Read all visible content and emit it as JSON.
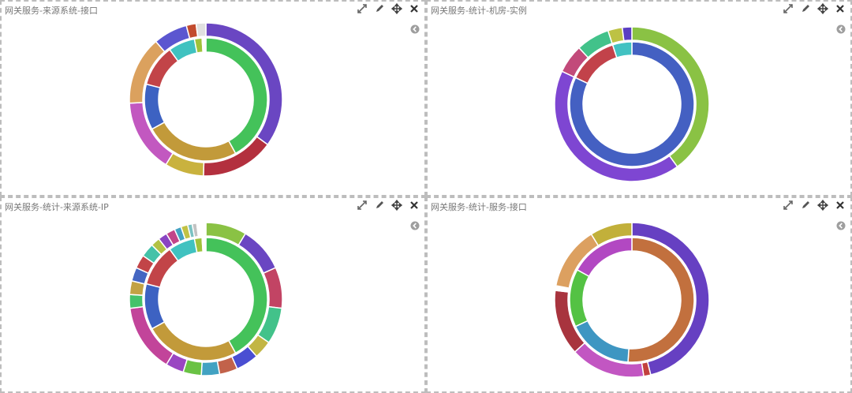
{
  "panels": [
    {
      "title": "网关服务-来源系统-接口",
      "chart_data": {
        "type": "pie",
        "variant": "nested-donut",
        "inner": [
          {
            "value": 42,
            "color": "#44c25a"
          },
          {
            "value": 25,
            "color": "#c29a3a"
          },
          {
            "value": 12,
            "color": "#3d62c2"
          },
          {
            "value": 11,
            "color": "#c24448"
          },
          {
            "value": 7,
            "color": "#40c2c0"
          },
          {
            "value": 2,
            "color": "#9fc23a"
          },
          {
            "value": 1,
            "color": "#ffffff"
          }
        ],
        "outer": [
          {
            "value": 34,
            "color": "#6a46c2"
          },
          {
            "value": 15,
            "color": "#b3303e"
          },
          {
            "value": 8,
            "color": "#c9b23e"
          },
          {
            "value": 15,
            "color": "#c258c0"
          },
          {
            "value": 14,
            "color": "#dba15e"
          },
          {
            "value": 7,
            "color": "#5b56d0"
          },
          {
            "value": 2,
            "color": "#c24b2e"
          },
          {
            "value": 2,
            "color": "#e0e0e0"
          }
        ]
      }
    },
    {
      "title": "网关服务-统计-机房-实例",
      "chart_data": {
        "type": "pie",
        "variant": "nested-donut",
        "inner": [
          {
            "value": 82,
            "color": "#4460c2"
          },
          {
            "value": 13,
            "color": "#c2424a"
          },
          {
            "value": 5,
            "color": "#42c2c2"
          }
        ],
        "outer": [
          {
            "value": 40,
            "color": "#8ac244"
          },
          {
            "value": 42,
            "color": "#7e46d2"
          },
          {
            "value": 6,
            "color": "#c24a7a"
          },
          {
            "value": 7,
            "color": "#42c28a"
          },
          {
            "value": 3,
            "color": "#bdc244"
          },
          {
            "value": 2,
            "color": "#5a3ec2"
          }
        ]
      }
    },
    {
      "title": "网关服务-统计-来源系统-IP",
      "chart_data": {
        "type": "pie",
        "variant": "nested-donut",
        "inner": [
          {
            "value": 42,
            "color": "#44c25a"
          },
          {
            "value": 25,
            "color": "#c29a3a"
          },
          {
            "value": 12,
            "color": "#3d62c2"
          },
          {
            "value": 11,
            "color": "#c24448"
          },
          {
            "value": 7,
            "color": "#40c2c0"
          },
          {
            "value": 2,
            "color": "#9fc23a"
          },
          {
            "value": 1,
            "color": "#ffffff"
          }
        ],
        "outer": [
          {
            "value": 9,
            "color": "#8ac244"
          },
          {
            "value": 10,
            "color": "#6a46c2"
          },
          {
            "value": 9,
            "color": "#c24464"
          },
          {
            "value": 8,
            "color": "#42c28a"
          },
          {
            "value": 4,
            "color": "#c2b644"
          },
          {
            "value": 5,
            "color": "#4a4ed2"
          },
          {
            "value": 4,
            "color": "#c2624a"
          },
          {
            "value": 4,
            "color": "#42a2c2"
          },
          {
            "value": 4,
            "color": "#6ac244"
          },
          {
            "value": 4,
            "color": "#9a46c2"
          },
          {
            "value": 15,
            "color": "#c2449a"
          },
          {
            "value": 3,
            "color": "#44c26a"
          },
          {
            "value": 3,
            "color": "#c2a244"
          },
          {
            "value": 3,
            "color": "#4466c2"
          },
          {
            "value": 3,
            "color": "#c24448"
          },
          {
            "value": 3,
            "color": "#44c2a8"
          },
          {
            "value": 2,
            "color": "#b2c244"
          },
          {
            "value": 2,
            "color": "#8a44c2"
          },
          {
            "value": 2,
            "color": "#c24488"
          },
          {
            "value": 1.5,
            "color": "#44a2c2"
          },
          {
            "value": 1.5,
            "color": "#c2c244"
          },
          {
            "value": 1,
            "color": "#7ac2c2"
          },
          {
            "value": 1,
            "color": "#c2c2c2"
          },
          {
            "value": 2,
            "color": "#ffffff"
          }
        ]
      }
    },
    {
      "title": "网关服务-统计-服务-接口",
      "chart_data": {
        "type": "pie",
        "variant": "nested-donut",
        "inner": [
          {
            "value": 51,
            "color": "#c2703e"
          },
          {
            "value": 17,
            "color": "#3e96c2"
          },
          {
            "value": 15,
            "color": "#54c244"
          },
          {
            "value": 17,
            "color": "#b248c2"
          }
        ],
        "outer": [
          {
            "value": 47,
            "color": "#6640c2"
          },
          {
            "value": 1.5,
            "color": "#c2403e"
          },
          {
            "value": 16,
            "color": "#c256c2"
          },
          {
            "value": 14,
            "color": "#a8343e"
          },
          {
            "value": 1,
            "color": "#ffffff"
          },
          {
            "value": 13.5,
            "color": "#dca060"
          },
          {
            "value": 9,
            "color": "#c2b03a"
          }
        ]
      }
    }
  ]
}
